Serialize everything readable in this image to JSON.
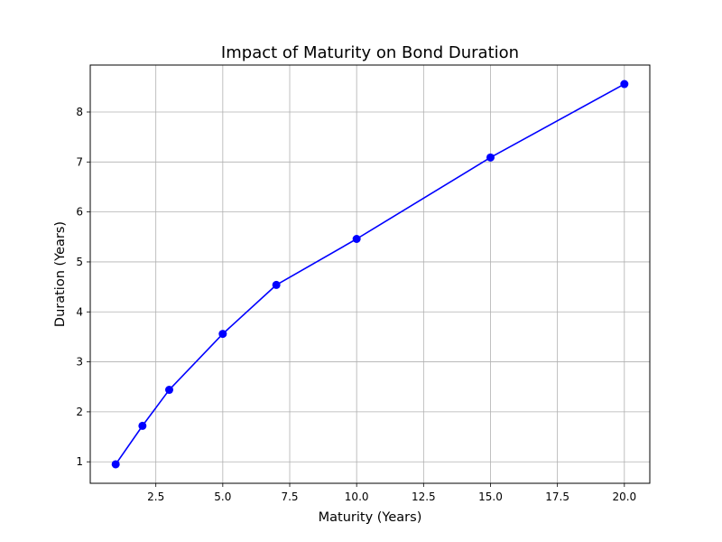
{
  "chart_data": {
    "type": "line",
    "title": "Impact of Maturity on Bond Duration",
    "xlabel": "Maturity (Years)",
    "ylabel": "Duration (Years)",
    "xlim": [
      0.05,
      20.95
    ],
    "ylim": [
      0.57,
      8.94
    ],
    "x_ticks": [
      2.5,
      5.0,
      7.5,
      10.0,
      12.5,
      15.0,
      17.5,
      20.0
    ],
    "x_tick_labels": [
      "2.5",
      "5.0",
      "7.5",
      "10.0",
      "12.5",
      "15.0",
      "17.5",
      "20.0"
    ],
    "y_ticks": [
      1,
      2,
      3,
      4,
      5,
      6,
      7,
      8
    ],
    "y_tick_labels": [
      "1",
      "2",
      "3",
      "4",
      "5",
      "6",
      "7",
      "8"
    ],
    "grid": true,
    "series": [
      {
        "color": "#0000ff",
        "marker": "circle",
        "x": [
          1,
          2,
          3,
          5,
          7,
          10,
          15,
          20
        ],
        "y": [
          0.95,
          1.72,
          2.44,
          3.56,
          4.54,
          5.46,
          7.09,
          8.56
        ]
      }
    ]
  }
}
